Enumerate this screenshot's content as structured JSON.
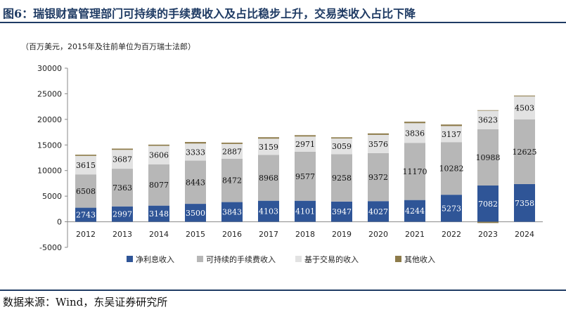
{
  "figure_title": "图6：瑞银财富管理部门可持续的手续费收入及占比稳步上升，交易类收入占比下降",
  "unit_note": "（百万美元，2015年及往前单位为百万瑞士法郎）",
  "source": "数据来源：Wind，东吴证券研究所",
  "colors": {
    "title": "#1f3b64",
    "net_interest": "#2f5597",
    "fees": "#b7b7b7",
    "transaction": "#e2e2e2",
    "other": "#8d7b4a"
  },
  "chart_data": {
    "type": "bar",
    "stacked": true,
    "categories": [
      "2012",
      "2013",
      "2014",
      "2015",
      "2016",
      "2017",
      "2018",
      "2019",
      "2020",
      "2021",
      "2022",
      "2023",
      "2024"
    ],
    "series": [
      {
        "name": "净利息收入",
        "values": [
          2743,
          2997,
          3148,
          3500,
          3843,
          4103,
          4101,
          3947,
          4027,
          4244,
          5273,
          7082,
          7358
        ]
      },
      {
        "name": "可持续的手续费收入",
        "values": [
          6508,
          7363,
          8077,
          8443,
          8472,
          8968,
          9577,
          9258,
          9372,
          11170,
          10282,
          10988,
          12625
        ]
      },
      {
        "name": "基于交易的收入",
        "values": [
          3615,
          3687,
          3606,
          3333,
          2887,
          3159,
          2971,
          3059,
          3576,
          3836,
          3137,
          3623,
          4503
        ]
      },
      {
        "name": "其他收入",
        "values": [
          230,
          240,
          230,
          300,
          250,
          280,
          260,
          230,
          280,
          290,
          300,
          100,
          150
        ]
      }
    ],
    "negative_other_2023": -250,
    "ylim": [
      -5000,
      30000
    ],
    "yticks": [
      "-5000",
      "0",
      "5000",
      "10000",
      "15000",
      "20000",
      "25000",
      "30000"
    ],
    "legend_position": "bottom",
    "grid": false
  }
}
